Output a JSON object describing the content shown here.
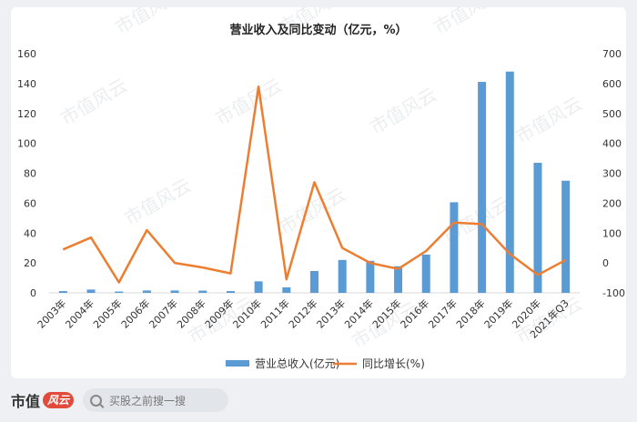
{
  "chart_data": {
    "type": "bar+line",
    "title": "营业收入及同比变动（亿元，%）",
    "categories": [
      "2003年",
      "2004年",
      "2005年",
      "2006年",
      "2007年",
      "2008年",
      "2009年",
      "2010年",
      "2011年",
      "2012年",
      "2013年",
      "2014年",
      "2015年",
      "2016年",
      "2017年",
      "2018年",
      "2019年",
      "2020年",
      "2021年Q3"
    ],
    "series": [
      {
        "name": "营业总收入(亿元)",
        "type": "bar",
        "axis": "left",
        "color": "#5b9bd5",
        "values": [
          1.2,
          2.2,
          0.9,
          1.6,
          1.6,
          1.5,
          1.2,
          7.7,
          3.7,
          14.6,
          22.0,
          21.4,
          17.8,
          25.6,
          60.6,
          141.1,
          148.0,
          87.0,
          75.0
        ]
      },
      {
        "name": "同比增长(%)",
        "type": "line",
        "axis": "right",
        "color": "#ed7d31",
        "values": [
          45,
          85,
          -65,
          110,
          0,
          -15,
          -35,
          590,
          -55,
          270,
          50,
          0,
          -20,
          40,
          135,
          130,
          30,
          -40,
          10
        ]
      }
    ],
    "y_left": {
      "min": 0,
      "max": 160,
      "ticks": [
        0,
        20,
        40,
        60,
        80,
        100,
        120,
        140,
        160
      ]
    },
    "y_right": {
      "min": -100,
      "max": 700,
      "ticks": [
        -100,
        0,
        100,
        200,
        300,
        400,
        500,
        600,
        700
      ]
    },
    "legend": "bottom-center",
    "grid": false
  },
  "watermark_text": "市值风云",
  "footer": {
    "logo_text": "市值",
    "logo_mark": "风云",
    "search_placeholder": "买股之前搜一搜"
  }
}
